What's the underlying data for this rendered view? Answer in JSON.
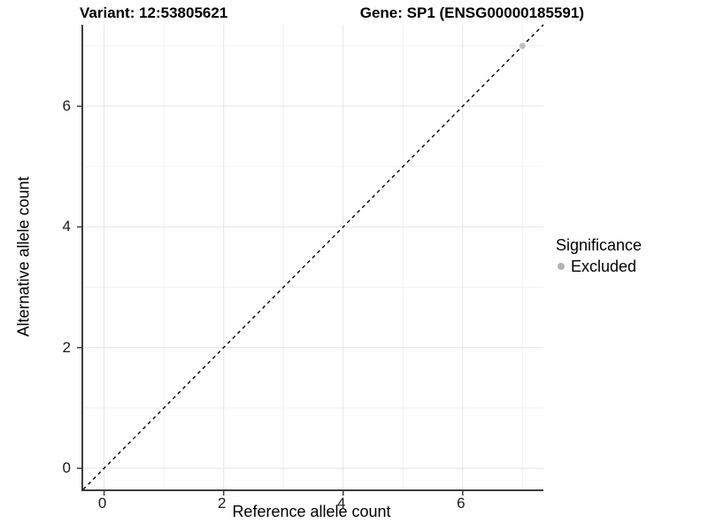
{
  "chart_data": {
    "type": "scatter",
    "title_left": "Variant: 12:53805621",
    "title_right": "Gene: SP1 (ENSG00000185591)",
    "xlabel": "Reference allele count",
    "ylabel": "Alternative allele count",
    "axis_range": [
      -0.35,
      7.35
    ],
    "major_breaks": [
      0,
      2,
      4,
      6
    ],
    "minor_breaks": [
      1,
      3,
      5,
      7
    ],
    "x_tick_labels": [
      "0",
      "2",
      "4",
      "6"
    ],
    "y_tick_labels": [
      "0",
      "2",
      "4",
      "6"
    ],
    "grid": true,
    "points": [
      {
        "x": 7,
        "y": 7,
        "series": "Excluded"
      }
    ],
    "reference_line": {
      "kind": "identity y=x",
      "style": "dashed",
      "from": -0.35,
      "to": 7.35
    },
    "legend": {
      "position": "right",
      "title": "Significance",
      "entries": [
        {
          "label": "Excluded",
          "color": "#bebebe"
        }
      ]
    },
    "colors": {
      "point": "#c0c0c0",
      "legend_dot": "#b3b3b3",
      "grid_major": "#e4e4e4",
      "grid_minor": "#f1f1f1",
      "axis_line": "#3d3d3d",
      "dashed_line": "#000000",
      "background": "#ffffff"
    }
  }
}
